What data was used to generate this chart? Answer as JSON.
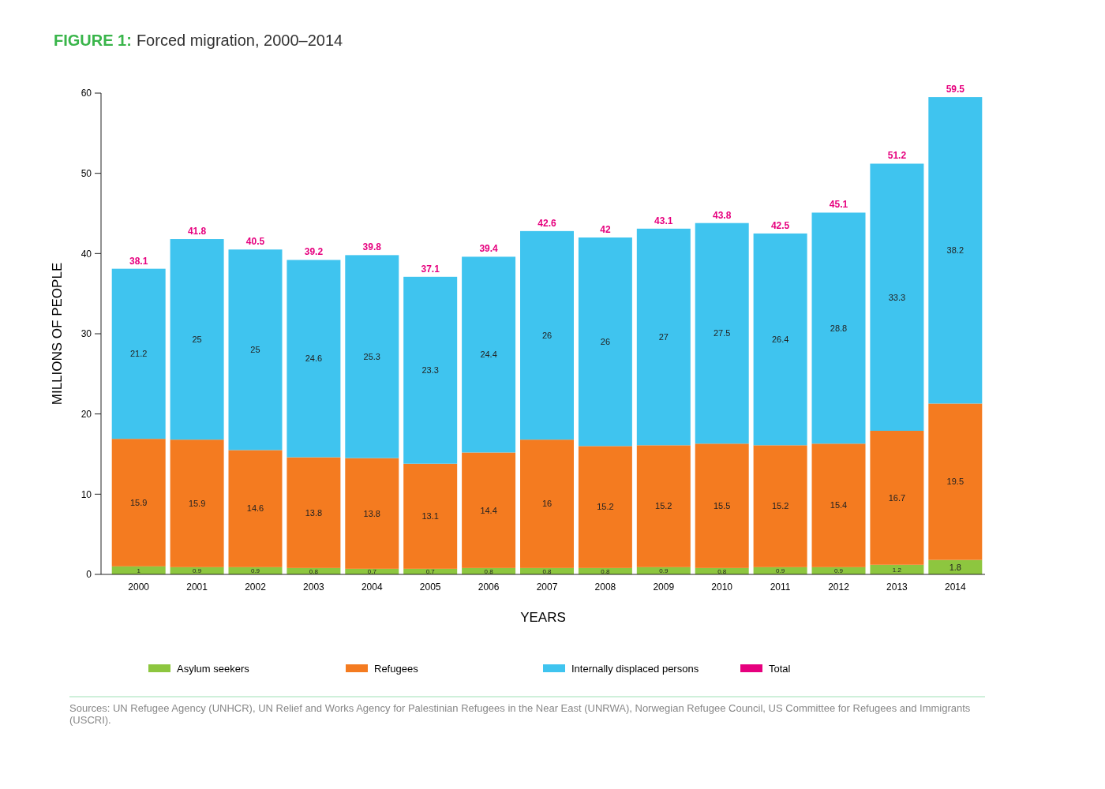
{
  "chart_data": {
    "type": "bar",
    "stacked": true,
    "title": "FIGURE 1:",
    "subtitle": "Forced migration, 2000–2014",
    "xlabel": "YEARS",
    "ylabel": "MILLIONS OF PEOPLE",
    "categories": [
      "2000",
      "2001",
      "2002",
      "2003",
      "2004",
      "2005",
      "2006",
      "2007",
      "2008",
      "2009",
      "2010",
      "2011",
      "2012",
      "2013",
      "2014"
    ],
    "series": [
      {
        "name": "Asylum seekers",
        "color": "#8dc63f",
        "values": [
          1,
          0.9,
          0.9,
          0.8,
          0.7,
          0.7,
          0.8,
          0.8,
          0.8,
          0.9,
          0.8,
          0.9,
          0.9,
          1.2,
          1.8
        ]
      },
      {
        "name": "Refugees",
        "color": "#f47b20",
        "values": [
          15.9,
          15.9,
          14.6,
          13.8,
          13.8,
          13.1,
          14.4,
          16,
          15.2,
          15.2,
          15.5,
          15.2,
          15.4,
          16.7,
          19.5
        ]
      },
      {
        "name": "Internally displaced persons",
        "color": "#3fc4ef",
        "values": [
          21.2,
          25,
          25,
          24.6,
          25.3,
          23.3,
          24.4,
          26,
          26,
          27,
          27.5,
          26.4,
          28.8,
          33.3,
          38.2
        ]
      },
      {
        "name": "Total",
        "color": "#e6007e",
        "values": [
          null,
          null,
          null,
          null,
          null,
          null,
          null,
          null,
          null,
          null,
          null,
          null,
          null,
          null,
          null
        ]
      }
    ],
    "totals": [
      "38.1",
      "41.8",
      "40.5",
      "39.2",
      "39.8",
      "37.1",
      "39.4",
      "42.6",
      "42",
      "43.1",
      "43.8",
      "42.5",
      "45.1",
      "51.2",
      "59.5"
    ],
    "ylim": [
      0,
      60
    ],
    "yticks": [
      0,
      10,
      20,
      30,
      40,
      50,
      60
    ],
    "data_labels": true,
    "legend": "bottom",
    "annotations": [
      "Sources: UN Refugee Agency (UNHCR), UN Relief and Works Agency for Palestinian Refugees in the Near East (UNRWA), Norwegian Refugee Council, US Committee for Refugees and Immigrants (USCRI)."
    ]
  }
}
